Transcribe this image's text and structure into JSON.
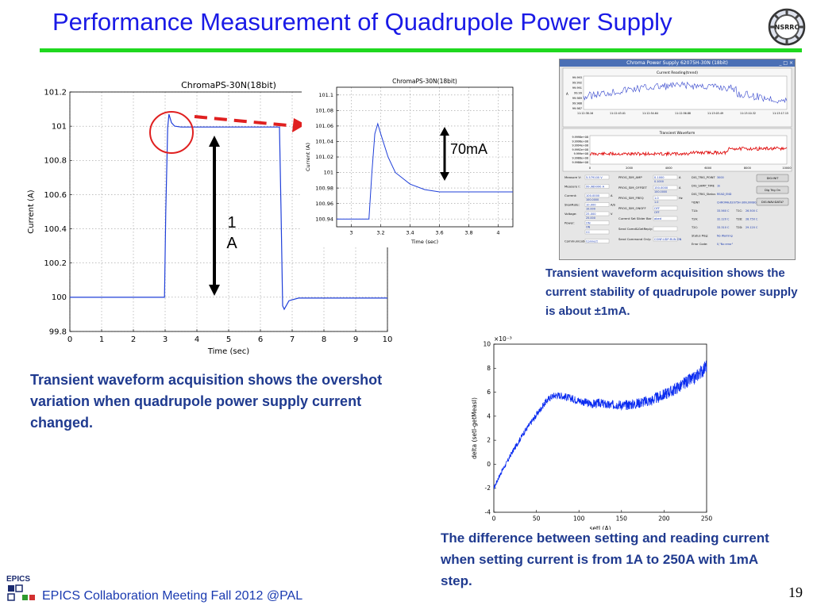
{
  "slide": {
    "title": "Performance Measurement of Quadrupole Power Supply",
    "logo_text": "NSRRC",
    "page_number": "19",
    "footer": "EPICS Collaboration Meeting Fall 2012 @PAL",
    "epics_logo_text": "EPICS",
    "accent_green": "#1fd81f",
    "title_color": "#1a1ae6",
    "caption_color": "#1f3a8f"
  },
  "captions": {
    "left": "Transient waveform acquisition shows the overshot variation when quadrupole power supply current changed.",
    "right": "Transient waveform acquisition shows the current stability of quadrupole power supply is about ±1mA.",
    "bottom": "The difference between setting and reading current when setting current is from 1A to 250A with 1mA step."
  },
  "annotations": {
    "step_label": "1\nA",
    "step_label_line1": "1",
    "step_label_line2": "A",
    "overshoot_label": "70mA"
  },
  "gui": {
    "window_title": "Chroma Power Supply 62075H-30N (18bit)",
    "reading_title": "Current Reading(trend)",
    "reading_unit": "A",
    "reading_yticks": [
      "99.993",
      "99.992",
      "99.991",
      "99.99",
      "99.989",
      "99.988",
      "99.987"
    ],
    "reading_xticks": [
      "11:12:38.16\n09-23-2012",
      "11:12:43.01",
      "11:12:54.64",
      "11:12:56.88",
      "11:13:03.49",
      "11:13:10.32",
      "11:13:17.15\n09-23-2012"
    ],
    "transient_title": "Transient Waveform",
    "transient_yticks": [
      "9.9998e+08",
      "9.9996e+08",
      "9.9994e+08",
      "9.9992e+08",
      "9.999e+08",
      "9.9988e+08",
      "9.9986e+08"
    ],
    "transient_xticks": [
      "0",
      "2000",
      "4000",
      "6000",
      "8000",
      "10000"
    ],
    "left_fields": [
      {
        "label": "Measure V:",
        "value": "5.579100 V"
      },
      {
        "label": "Measure I:",
        "value": "99.989990 A"
      },
      {
        "label": "Current:",
        "value": "100.0000",
        "unit": "A",
        "readback": "100.0000"
      },
      {
        "label": "SlewRate:",
        "value": "10.000",
        "unit": "A/S",
        "readback": "10.000"
      },
      {
        "label": "Voltage:",
        "value": "25.000",
        "unit": "V",
        "readback": "25.000"
      },
      {
        "label": "Power:",
        "value": "ON",
        "readback": "ON"
      },
      {
        "label": "",
        "value": "CC"
      },
      {
        "label": "Communication:",
        "value": "Connect"
      }
    ],
    "mid_fields": [
      {
        "label": "PROG_SIM_AMP",
        "value": "0.1000",
        "unit": "A",
        "readback": "0.1000"
      },
      {
        "label": "PROG_SIM_OFFSET",
        "value": "150.0000",
        "unit": "A",
        "readback": "100.0000"
      },
      {
        "label": "PROG_SIM_FREQ",
        "value": "1.0",
        "unit": "Hz",
        "readback": "1.0"
      },
      {
        "label": "PROG_SIM_ONOFF",
        "value": "OFF",
        "readback": "OFF"
      },
      {
        "label": "Current Set Slider Bar",
        "value": "abed"
      },
      {
        "label": "Send Comd&GetReply:",
        "value": ""
      },
      {
        "label": "Send Command Only:",
        "value": "CONF:UDP:RUN ON"
      }
    ],
    "right_fields": [
      {
        "label": "DIG_TRIG_POINT",
        "value": "3000",
        "readback": "3000"
      },
      {
        "label": "DIG_SAMP_TIME",
        "value": "1k",
        "readback": "1k"
      },
      {
        "label": "DIG_TRIG_Status",
        "value": "READ_END"
      },
      {
        "label": "*IDN?",
        "value": "CHROMA,62075H-30N,00080,01.00 BETA 1.15"
      },
      {
        "label": "T1A:",
        "value": "33.560 C",
        "label2": "T1C:",
        "value2": "26.500 C"
      },
      {
        "label": "T2A:",
        "value": "32.120 C",
        "label2": "T2B:",
        "value2": "28.750 C"
      },
      {
        "label": "T2C:",
        "value": "33.310 C",
        "label2": "T2D:",
        "value2": "29.120 C"
      },
      {
        "label": "Status Msg:",
        "value": "No Warning"
      },
      {
        "label": "Error Code:",
        "value": "0,\"No error\""
      }
    ],
    "buttons": [
      "DIG:INIT",
      "Dig Trig On",
      "DIG:WAV:DATA?"
    ]
  },
  "chart_data": [
    {
      "type": "line",
      "title": "ChromaPS-30N(18bit)",
      "xlabel": "Time (sec)",
      "ylabel": "Current (A)",
      "xlim": [
        0,
        10
      ],
      "ylim": [
        99.8,
        101.2
      ],
      "xticks": [
        "0",
        "1",
        "2",
        "3",
        "4",
        "5",
        "6",
        "7",
        "8",
        "9",
        "10"
      ],
      "yticks": [
        "99.8",
        "100",
        "100.2",
        "100.4",
        "100.6",
        "100.8",
        "101",
        "101.2"
      ],
      "grid": true,
      "series": [
        {
          "name": "",
          "color": "#1f3fd9",
          "x": [
            0,
            2.98,
            3.02,
            3.08,
            3.12,
            3.2,
            3.3,
            3.5,
            4.0,
            6.6,
            6.65,
            6.7,
            6.75,
            6.9,
            7.2,
            10
          ],
          "y": [
            100.0,
            100.0,
            100.5,
            100.99,
            101.07,
            101.02,
            101.0,
            100.995,
            100.995,
            100.995,
            100.5,
            99.95,
            99.93,
            99.98,
            99.995,
            99.995
          ]
        }
      ]
    },
    {
      "type": "line",
      "title": "ChromaPS-30N(18bit)",
      "xlabel": "Time (sec)",
      "ylabel": "Current (A)",
      "xlim": [
        2.9,
        4.1
      ],
      "ylim": [
        100.93,
        101.11
      ],
      "xticks": [
        "3",
        "3.2",
        "3.4",
        "3.6",
        "3.8",
        "4"
      ],
      "yticks": [
        "100.94",
        "100.96",
        "100.98",
        "101",
        "101.02",
        "101.04",
        "101.06",
        "101.08",
        "101.1"
      ],
      "grid": true,
      "series": [
        {
          "name": "",
          "color": "#1f3fd9",
          "x": [
            2.9,
            3.12,
            3.14,
            3.16,
            3.18,
            3.2,
            3.25,
            3.3,
            3.4,
            3.5,
            3.6,
            3.8,
            4.0,
            4.1
          ],
          "y": [
            100.94,
            100.94,
            101.0,
            101.05,
            101.063,
            101.05,
            101.02,
            101.0,
            100.985,
            100.978,
            100.975,
            100.975,
            100.975,
            100.975
          ]
        }
      ]
    },
    {
      "type": "line",
      "title": "",
      "xlabel": "setI (A)",
      "ylabel": "delta (setI-getMeasI)",
      "y_multiplier": "×10⁻³",
      "xlim": [
        0,
        250
      ],
      "ylim": [
        -4,
        10
      ],
      "xticks": [
        "0",
        "50",
        "100",
        "150",
        "200",
        "250"
      ],
      "yticks": [
        "-4",
        "-2",
        "0",
        "2",
        "4",
        "6",
        "8",
        "10"
      ],
      "grid": false,
      "series": [
        {
          "name": "",
          "color": "#0b2cf0",
          "x": [
            0,
            5,
            10,
            15,
            20,
            25,
            30,
            35,
            40,
            45,
            50,
            55,
            60,
            65,
            70,
            75,
            80,
            85,
            90,
            95,
            100,
            105,
            110,
            115,
            120,
            125,
            130,
            135,
            140,
            145,
            150,
            155,
            160,
            165,
            170,
            175,
            180,
            185,
            190,
            195,
            200,
            205,
            210,
            215,
            220,
            225,
            230,
            235,
            240,
            245,
            250
          ],
          "y": [
            -2.0,
            -1.2,
            -0.5,
            0.1,
            0.8,
            1.4,
            2.0,
            2.6,
            3.1,
            3.6,
            4.1,
            4.6,
            5.1,
            5.5,
            5.7,
            5.75,
            5.7,
            5.6,
            5.5,
            5.4,
            5.3,
            5.2,
            5.1,
            5.0,
            5.05,
            5.1,
            5.0,
            4.9,
            4.95,
            5.0,
            4.95,
            4.9,
            5.0,
            5.0,
            5.1,
            5.2,
            5.25,
            5.3,
            5.5,
            5.6,
            5.8,
            6.0,
            6.1,
            6.4,
            6.5,
            6.8,
            7.0,
            7.1,
            7.5,
            7.8,
            8.2
          ]
        }
      ]
    }
  ]
}
